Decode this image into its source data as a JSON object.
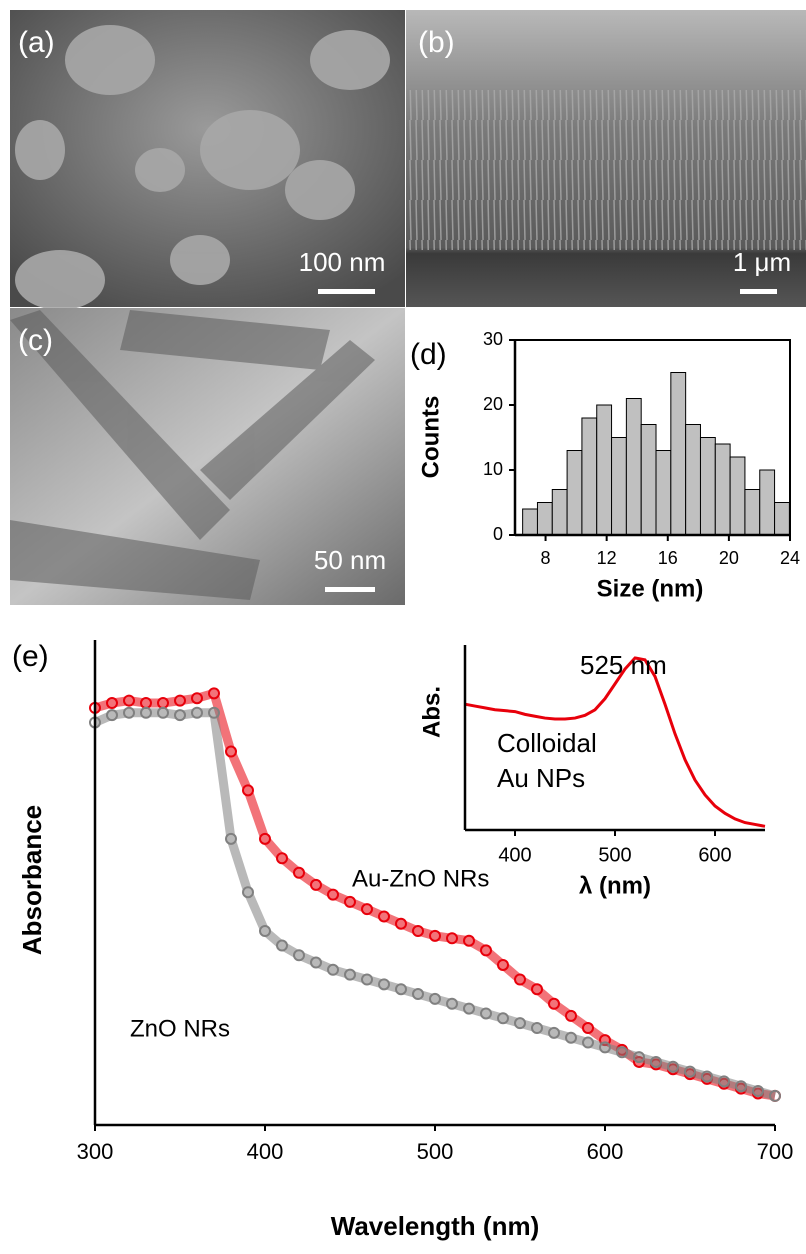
{
  "images": [
    {
      "label": "(a)",
      "scale_bar": "100 nm"
    },
    {
      "label": "(b)",
      "scale_bar": "1 μm"
    },
    {
      "label": "(c)",
      "scale_bar": "50 nm"
    }
  ],
  "chart_data": [
    {
      "type": "histogram",
      "label": "(d)",
      "x_label": "Size (nm)",
      "y_label": "Counts",
      "bins": [
        6.5,
        7.47,
        8.44,
        9.41,
        10.38,
        11.35,
        12.32,
        13.29,
        14.26,
        15.23,
        16.2,
        17.17,
        18.14,
        19.11,
        20.08,
        21.05,
        22.02,
        22.99,
        23.96
      ],
      "values": [
        4,
        5,
        7,
        13,
        18,
        20,
        15,
        21,
        17,
        13,
        25,
        17,
        15,
        14,
        12,
        7,
        10,
        5
      ],
      "color": "#c0c0c0",
      "xlim": [
        6,
        24
      ],
      "xticks": [
        8,
        12,
        16,
        20,
        24
      ],
      "ylim": [
        0,
        30
      ],
      "yticks": [
        0,
        10,
        20,
        30
      ]
    },
    {
      "type": "scatter",
      "label": "(e)",
      "x_label": "Wavelength (nm)",
      "y_label": "Absorbance",
      "x": [
        300,
        310,
        320,
        330,
        340,
        350,
        360,
        370,
        380,
        390,
        400,
        410,
        420,
        430,
        440,
        450,
        460,
        470,
        480,
        490,
        500,
        510,
        520,
        530,
        540,
        550,
        560,
        570,
        580,
        590,
        600,
        610,
        620,
        630,
        640,
        650,
        660,
        670,
        680,
        690,
        700
      ],
      "series": [
        {
          "name": "Au-ZnO NRs",
          "color": "#e8000b",
          "values": [
            0.86,
            0.87,
            0.875,
            0.87,
            0.87,
            0.875,
            0.88,
            0.89,
            0.77,
            0.69,
            0.59,
            0.55,
            0.52,
            0.495,
            0.475,
            0.46,
            0.445,
            0.43,
            0.415,
            0.4,
            0.39,
            0.385,
            0.38,
            0.36,
            0.33,
            0.3,
            0.28,
            0.25,
            0.225,
            0.2,
            0.175,
            0.155,
            0.13,
            0.125,
            0.115,
            0.105,
            0.095,
            0.085,
            0.075,
            0.065,
            0.06
          ]
        },
        {
          "name": "ZnO NRs",
          "color": "#808080",
          "values": [
            0.83,
            0.845,
            0.85,
            0.85,
            0.85,
            0.845,
            0.85,
            0.85,
            0.59,
            0.48,
            0.4,
            0.37,
            0.35,
            0.335,
            0.32,
            0.31,
            0.3,
            0.29,
            0.28,
            0.27,
            0.26,
            0.25,
            0.24,
            0.23,
            0.22,
            0.21,
            0.2,
            0.19,
            0.18,
            0.17,
            0.16,
            0.15,
            0.14,
            0.13,
            0.12,
            0.11,
            0.1,
            0.09,
            0.08,
            0.07,
            0.06
          ]
        }
      ],
      "xlim": [
        300,
        700
      ],
      "xticks": [
        300,
        400,
        500,
        600,
        700
      ],
      "ylim": [
        0,
        1
      ]
    },
    {
      "type": "line",
      "x_label": "λ (nm)",
      "y_label": "Abs.",
      "annotations": [
        "525 nm",
        "Colloidal",
        "Au NPs"
      ],
      "x": [
        350,
        360,
        370,
        380,
        390,
        400,
        410,
        420,
        430,
        440,
        450,
        460,
        470,
        480,
        490,
        500,
        510,
        520,
        530,
        540,
        550,
        560,
        570,
        580,
        590,
        600,
        610,
        620,
        630,
        640,
        650
      ],
      "values": [
        0.68,
        0.67,
        0.66,
        0.65,
        0.645,
        0.64,
        0.625,
        0.615,
        0.605,
        0.6,
        0.6,
        0.605,
        0.62,
        0.65,
        0.71,
        0.79,
        0.87,
        0.93,
        0.92,
        0.83,
        0.68,
        0.52,
        0.38,
        0.27,
        0.19,
        0.13,
        0.09,
        0.06,
        0.04,
        0.03,
        0.02
      ],
      "color": "#e8000b",
      "xlim": [
        350,
        650
      ],
      "xticks": [
        400,
        500,
        600
      ],
      "ylim": [
        0,
        1
      ]
    }
  ]
}
